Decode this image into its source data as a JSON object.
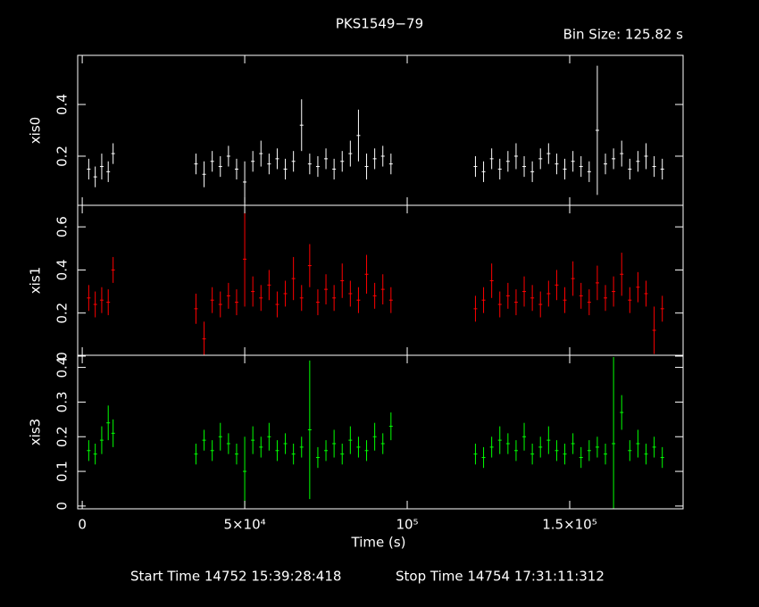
{
  "header": {
    "title": "PKS1549−79",
    "bin_size": "Bin Size: 125.82 s",
    "start_time": "Start Time 14752 15:39:28:418",
    "stop_time": "Stop Time 14754 17:31:11:312"
  },
  "chart_data": [
    {
      "type": "errorbar",
      "ylabel": "xis0",
      "color": "#ffffff",
      "x": [
        2000,
        4000,
        6000,
        8000,
        9500,
        35000,
        37500,
        40000,
        42500,
        45000,
        47500,
        50000,
        52500,
        55000,
        57500,
        60000,
        62500,
        65000,
        67500,
        70000,
        72500,
        75000,
        77500,
        80000,
        82500,
        85000,
        87500,
        90000,
        92500,
        95000,
        121000,
        123500,
        126000,
        128500,
        131000,
        133500,
        136000,
        138500,
        141000,
        143500,
        146000,
        148500,
        151000,
        153500,
        156000,
        158500,
        161000,
        163500,
        166000,
        168500,
        171000,
        173500,
        176000,
        178500
      ],
      "values": [
        0.15,
        0.12,
        0.16,
        0.14,
        0.21,
        0.17,
        0.13,
        0.18,
        0.16,
        0.2,
        0.15,
        0.1,
        0.18,
        0.21,
        0.17,
        0.19,
        0.15,
        0.18,
        0.32,
        0.17,
        0.16,
        0.19,
        0.15,
        0.18,
        0.21,
        0.28,
        0.16,
        0.19,
        0.2,
        0.17,
        0.16,
        0.14,
        0.19,
        0.15,
        0.18,
        0.2,
        0.16,
        0.14,
        0.19,
        0.21,
        0.17,
        0.15,
        0.18,
        0.16,
        0.14,
        0.3,
        0.17,
        0.19,
        0.21,
        0.15,
        0.18,
        0.2,
        0.16,
        0.15
      ],
      "errors": [
        0.04,
        0.04,
        0.05,
        0.04,
        0.04,
        0.04,
        0.05,
        0.04,
        0.04,
        0.04,
        0.04,
        0.08,
        0.04,
        0.05,
        0.04,
        0.04,
        0.04,
        0.04,
        0.1,
        0.04,
        0.04,
        0.04,
        0.04,
        0.04,
        0.05,
        0.1,
        0.05,
        0.04,
        0.04,
        0.04,
        0.04,
        0.04,
        0.04,
        0.04,
        0.04,
        0.05,
        0.04,
        0.04,
        0.04,
        0.04,
        0.04,
        0.04,
        0.04,
        0.04,
        0.04,
        0.25,
        0.04,
        0.04,
        0.05,
        0.04,
        0.04,
        0.05,
        0.04,
        0.04
      ],
      "xlim": [
        -1400,
        184900
      ],
      "xticks": [
        0,
        {
          "value": 50000,
          "label": "5×10⁴"
        },
        {
          "value": 100000,
          "label": "10⁵"
        },
        {
          "value": 150000,
          "label": "1.5×10⁵"
        }
      ],
      "ylim": [
        0.01,
        0.59
      ],
      "yticks": [
        0.2,
        0.4
      ]
    },
    {
      "type": "errorbar",
      "ylabel": "xis1",
      "color": "#ff0000",
      "x": [
        2000,
        4000,
        6000,
        8000,
        9500,
        35000,
        37500,
        40000,
        42500,
        45000,
        47500,
        50000,
        52500,
        55000,
        57500,
        60000,
        62500,
        65000,
        67500,
        70000,
        72500,
        75000,
        77500,
        80000,
        82500,
        85000,
        87500,
        90000,
        92500,
        95000,
        121000,
        123500,
        126000,
        128500,
        131000,
        133500,
        136000,
        138500,
        141000,
        143500,
        146000,
        148500,
        151000,
        153500,
        156000,
        158500,
        161000,
        163500,
        166000,
        168500,
        171000,
        173500,
        176000,
        178500
      ],
      "values": [
        0.27,
        0.24,
        0.26,
        0.25,
        0.4,
        0.22,
        0.08,
        0.26,
        0.24,
        0.28,
        0.25,
        0.45,
        0.3,
        0.27,
        0.33,
        0.24,
        0.29,
        0.36,
        0.27,
        0.42,
        0.25,
        0.31,
        0.27,
        0.35,
        0.29,
        0.26,
        0.38,
        0.28,
        0.31,
        0.26,
        0.22,
        0.26,
        0.35,
        0.24,
        0.28,
        0.25,
        0.3,
        0.27,
        0.24,
        0.29,
        0.33,
        0.26,
        0.36,
        0.28,
        0.25,
        0.34,
        0.27,
        0.3,
        0.38,
        0.26,
        0.32,
        0.29,
        0.12,
        0.22
      ],
      "errors": [
        0.06,
        0.06,
        0.06,
        0.06,
        0.06,
        0.07,
        0.08,
        0.06,
        0.06,
        0.06,
        0.06,
        0.22,
        0.07,
        0.06,
        0.07,
        0.06,
        0.06,
        0.1,
        0.06,
        0.1,
        0.06,
        0.07,
        0.06,
        0.08,
        0.06,
        0.06,
        0.09,
        0.06,
        0.07,
        0.06,
        0.06,
        0.06,
        0.08,
        0.06,
        0.06,
        0.06,
        0.07,
        0.06,
        0.06,
        0.06,
        0.07,
        0.06,
        0.08,
        0.06,
        0.06,
        0.08,
        0.06,
        0.07,
        0.1,
        0.06,
        0.07,
        0.06,
        0.11,
        0.06
      ],
      "xlim": [
        -1400,
        184900
      ],
      "xticks": [
        0,
        {
          "value": 50000,
          "label": "5×10⁴"
        },
        {
          "value": 100000,
          "label": "10⁵"
        },
        {
          "value": 150000,
          "label": "1.5×10⁵"
        }
      ],
      "ylim": [
        0.004,
        0.7
      ],
      "yticks": [
        0,
        0.2,
        0.4,
        0.6
      ]
    },
    {
      "type": "errorbar",
      "ylabel": "xis3",
      "color": "#00ff00",
      "xlabel": "Time (s)",
      "x": [
        2000,
        4000,
        6000,
        8000,
        9500,
        35000,
        37500,
        40000,
        42500,
        45000,
        47500,
        50000,
        52500,
        55000,
        57500,
        60000,
        62500,
        65000,
        67500,
        70000,
        72500,
        75000,
        77500,
        80000,
        82500,
        85000,
        87500,
        90000,
        92500,
        95000,
        121000,
        123500,
        126000,
        128500,
        131000,
        133500,
        136000,
        138500,
        141000,
        143500,
        146000,
        148500,
        151000,
        153500,
        156000,
        158500,
        161000,
        163500,
        166000,
        168500,
        171000,
        173500,
        176000,
        178500
      ],
      "values": [
        0.16,
        0.15,
        0.19,
        0.24,
        0.21,
        0.15,
        0.19,
        0.16,
        0.2,
        0.18,
        0.15,
        0.1,
        0.19,
        0.17,
        0.2,
        0.16,
        0.18,
        0.15,
        0.17,
        0.22,
        0.14,
        0.16,
        0.18,
        0.15,
        0.19,
        0.17,
        0.16,
        0.2,
        0.18,
        0.23,
        0.15,
        0.14,
        0.17,
        0.19,
        0.18,
        0.16,
        0.2,
        0.15,
        0.17,
        0.19,
        0.16,
        0.15,
        0.18,
        0.14,
        0.16,
        0.17,
        0.15,
        0.18,
        0.27,
        0.16,
        0.18,
        0.15,
        0.17,
        0.14
      ],
      "errors": [
        0.03,
        0.03,
        0.04,
        0.05,
        0.04,
        0.03,
        0.03,
        0.03,
        0.04,
        0.03,
        0.03,
        0.1,
        0.04,
        0.03,
        0.04,
        0.03,
        0.03,
        0.03,
        0.03,
        0.2,
        0.03,
        0.03,
        0.04,
        0.03,
        0.04,
        0.03,
        0.03,
        0.04,
        0.03,
        0.04,
        0.03,
        0.03,
        0.03,
        0.04,
        0.03,
        0.03,
        0.04,
        0.03,
        0.03,
        0.04,
        0.03,
        0.03,
        0.03,
        0.03,
        0.03,
        0.03,
        0.03,
        0.25,
        0.05,
        0.03,
        0.04,
        0.03,
        0.03,
        0.03
      ],
      "xlim": [
        -1400,
        184900
      ],
      "xticks": [
        0,
        {
          "value": 50000,
          "label": "5×10⁴"
        },
        {
          "value": 100000,
          "label": "10⁵"
        },
        {
          "value": 150000,
          "label": "1.5×10⁵"
        }
      ],
      "ylim": [
        -0.008,
        0.435
      ],
      "yticks": [
        0,
        0.1,
        0.2,
        0.3,
        0.4
      ]
    }
  ]
}
